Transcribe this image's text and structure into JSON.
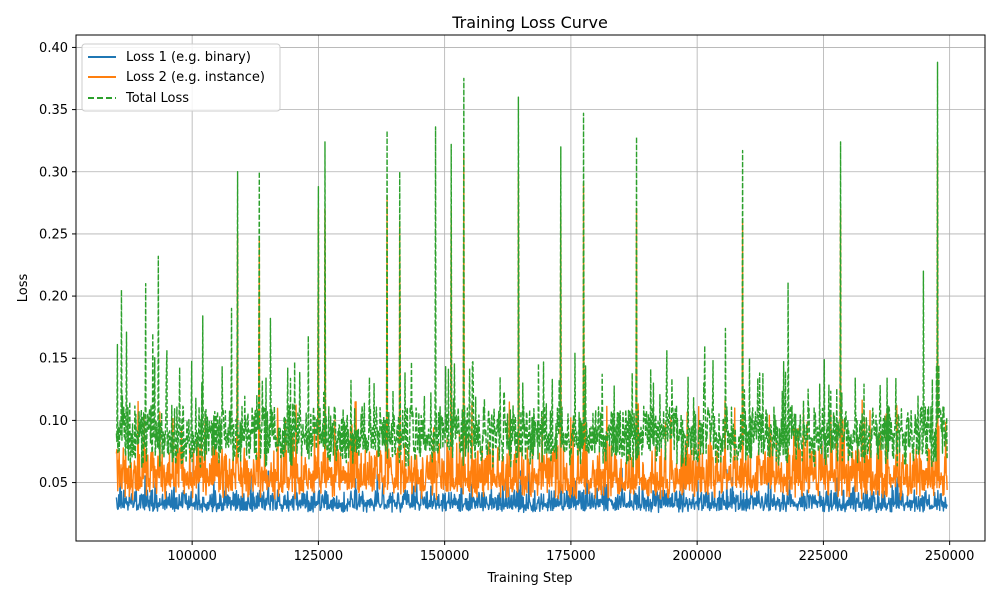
{
  "chart_data": {
    "type": "line",
    "title": "Training Loss Curve",
    "xlabel": "Training Step",
    "ylabel": "Loss",
    "xlim": [
      77000,
      257000
    ],
    "ylim": [
      0.003,
      0.41
    ],
    "x_ticks": [
      100000,
      125000,
      150000,
      175000,
      200000,
      225000,
      250000
    ],
    "x_tick_labels": [
      "100000",
      "125000",
      "150000",
      "175000",
      "200000",
      "225000",
      "250000"
    ],
    "y_ticks": [
      0.05,
      0.1,
      0.15,
      0.2,
      0.25,
      0.3,
      0.35,
      0.4
    ],
    "y_tick_labels": [
      "0.05",
      "0.10",
      "0.15",
      "0.20",
      "0.25",
      "0.30",
      "0.35",
      "0.40"
    ],
    "grid": true,
    "legend_position": "top-left",
    "x_range": [
      85000,
      249500
    ],
    "series": [
      {
        "name": "Loss 1 (e.g. binary)",
        "color": "#1f77b4",
        "style": "solid",
        "baseline": 0.033,
        "band": [
          0.026,
          0.044
        ],
        "spikes": []
      },
      {
        "name": "Loss 2 (e.g. instance)",
        "color": "#ff7f0e",
        "style": "solid",
        "baseline": 0.054,
        "band": [
          0.036,
          0.078
        ],
        "spikes": [
          {
            "x": 109000,
            "y": 0.25
          },
          {
            "x": 113300,
            "y": 0.245
          },
          {
            "x": 125000,
            "y": 0.27
          },
          {
            "x": 126300,
            "y": 0.27
          },
          {
            "x": 138600,
            "y": 0.28
          },
          {
            "x": 141100,
            "y": 0.26
          },
          {
            "x": 151300,
            "y": 0.27
          },
          {
            "x": 153800,
            "y": 0.315
          },
          {
            "x": 164600,
            "y": 0.3
          },
          {
            "x": 173000,
            "y": 0.27
          },
          {
            "x": 177500,
            "y": 0.29
          },
          {
            "x": 188000,
            "y": 0.27
          },
          {
            "x": 209000,
            "y": 0.26
          },
          {
            "x": 228400,
            "y": 0.27
          },
          {
            "x": 247600,
            "y": 0.32
          }
        ]
      },
      {
        "name": "Total Loss",
        "color": "#2ca02c",
        "style": "dashed",
        "baseline": 0.088,
        "band": [
          0.062,
          0.112
        ],
        "spikes": [
          {
            "x": 85200,
            "y": 0.161
          },
          {
            "x": 86000,
            "y": 0.205
          },
          {
            "x": 87000,
            "y": 0.171
          },
          {
            "x": 90800,
            "y": 0.21
          },
          {
            "x": 92200,
            "y": 0.17
          },
          {
            "x": 93300,
            "y": 0.232
          },
          {
            "x": 95000,
            "y": 0.156
          },
          {
            "x": 102100,
            "y": 0.184
          },
          {
            "x": 107800,
            "y": 0.19
          },
          {
            "x": 109000,
            "y": 0.3
          },
          {
            "x": 113300,
            "y": 0.3
          },
          {
            "x": 115500,
            "y": 0.182
          },
          {
            "x": 123000,
            "y": 0.168
          },
          {
            "x": 125000,
            "y": 0.288
          },
          {
            "x": 126300,
            "y": 0.324
          },
          {
            "x": 138600,
            "y": 0.333
          },
          {
            "x": 141100,
            "y": 0.3
          },
          {
            "x": 148200,
            "y": 0.336
          },
          {
            "x": 151300,
            "y": 0.322
          },
          {
            "x": 153800,
            "y": 0.375
          },
          {
            "x": 164600,
            "y": 0.36
          },
          {
            "x": 173000,
            "y": 0.32
          },
          {
            "x": 175800,
            "y": 0.154
          },
          {
            "x": 177500,
            "y": 0.347
          },
          {
            "x": 188000,
            "y": 0.328
          },
          {
            "x": 194000,
            "y": 0.156
          },
          {
            "x": 201500,
            "y": 0.16
          },
          {
            "x": 205600,
            "y": 0.174
          },
          {
            "x": 209000,
            "y": 0.317
          },
          {
            "x": 218000,
            "y": 0.211
          },
          {
            "x": 228400,
            "y": 0.324
          },
          {
            "x": 244800,
            "y": 0.22
          },
          {
            "x": 247600,
            "y": 0.388
          }
        ]
      }
    ]
  }
}
